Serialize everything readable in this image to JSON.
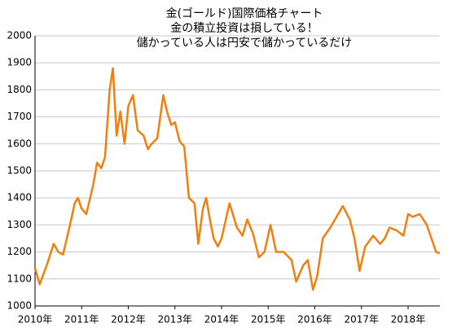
{
  "chart_data": {
    "type": "line",
    "title": [
      "金(ゴールド)国際価格チャート",
      "金の積立投資は損している！",
      "儲かっている人は円安で儲かっているだけ"
    ],
    "x": [
      2010.0,
      2010.1,
      2010.25,
      2010.4,
      2010.5,
      2010.6,
      2010.75,
      2010.85,
      2010.92,
      2011.0,
      2011.1,
      2011.25,
      2011.33,
      2011.42,
      2011.5,
      2011.6,
      2011.67,
      2011.75,
      2011.83,
      2011.92,
      2012.0,
      2012.1,
      2012.2,
      2012.33,
      2012.42,
      2012.5,
      2012.62,
      2012.75,
      2012.83,
      2012.92,
      2013.0,
      2013.1,
      2013.2,
      2013.3,
      2013.42,
      2013.5,
      2013.6,
      2013.67,
      2013.75,
      2013.83,
      2013.92,
      2014.0,
      2014.17,
      2014.33,
      2014.45,
      2014.55,
      2014.67,
      2014.8,
      2014.92,
      2015.05,
      2015.17,
      2015.33,
      2015.5,
      2015.6,
      2015.75,
      2015.85,
      2015.96,
      2016.05,
      2016.17,
      2016.33,
      2016.5,
      2016.6,
      2016.75,
      2016.85,
      2016.96,
      2017.08,
      2017.25,
      2017.4,
      2017.5,
      2017.6,
      2017.75,
      2017.9,
      2018.0,
      2018.1,
      2018.25,
      2018.4,
      2018.5,
      2018.6,
      2018.68
    ],
    "series": [
      {
        "name": "金",
        "color": "#f07f10",
        "values": [
          1140,
          1080,
          1150,
          1230,
          1200,
          1190,
          1300,
          1380,
          1400,
          1360,
          1340,
          1450,
          1530,
          1510,
          1550,
          1800,
          1880,
          1630,
          1720,
          1600,
          1740,
          1780,
          1650,
          1630,
          1580,
          1600,
          1620,
          1780,
          1720,
          1670,
          1680,
          1610,
          1590,
          1400,
          1380,
          1230,
          1360,
          1400,
          1320,
          1250,
          1220,
          1250,
          1380,
          1290,
          1260,
          1320,
          1270,
          1180,
          1200,
          1300,
          1200,
          1200,
          1170,
          1090,
          1150,
          1170,
          1060,
          1110,
          1250,
          1290,
          1340,
          1370,
          1320,
          1250,
          1130,
          1220,
          1260,
          1230,
          1250,
          1290,
          1280,
          1260,
          1340,
          1330,
          1340,
          1300,
          1250,
          1200,
          1195
        ]
      }
    ],
    "xlim": [
      2010,
      2018.68
    ],
    "xticks": [
      {
        "value": 2010,
        "label": "2010年"
      },
      {
        "value": 2011,
        "label": "2011年"
      },
      {
        "value": 2012,
        "label": "2012年"
      },
      {
        "value": 2013,
        "label": "2013年"
      },
      {
        "value": 2014,
        "label": "2014年"
      },
      {
        "value": 2015,
        "label": "2015年"
      },
      {
        "value": 2016,
        "label": "2016年"
      },
      {
        "value": 2017,
        "label": "2017年"
      },
      {
        "value": 2018,
        "label": "2018年"
      }
    ],
    "ylim": [
      1000,
      2000
    ],
    "yticks": [
      1000,
      1100,
      1200,
      1300,
      1400,
      1500,
      1600,
      1700,
      1800,
      1900,
      2000
    ],
    "grid": true
  }
}
